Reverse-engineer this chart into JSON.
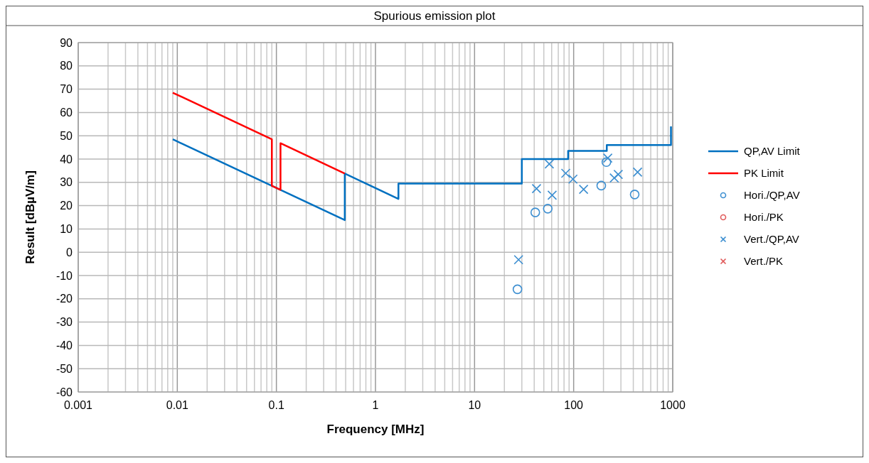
{
  "chart_data": {
    "type": "scatter",
    "title": "Spurious emission plot",
    "xlabel": "Frequency [MHz]",
    "ylabel": "Result [dBµV/m]",
    "log": "x",
    "grid": true,
    "legend": "right",
    "xlim": [
      0.001,
      1000
    ],
    "xticks": [
      0.001,
      0.01,
      0.1,
      1,
      10,
      100,
      1000
    ],
    "ylim": [
      -60,
      90
    ],
    "yticks": [
      -60,
      -50,
      -40,
      -30,
      -20,
      -10,
      0,
      10,
      20,
      30,
      40,
      50,
      60,
      70,
      80,
      90
    ],
    "series": [
      {
        "name": "QP,AV Limit",
        "type": "line",
        "color": "#0070c0",
        "marker": "none",
        "x": [
          0.009,
          0.49,
          0.49,
          1.705,
          1.705,
          30,
          30,
          88,
          88,
          216,
          216,
          960,
          960
        ],
        "values": [
          48.5,
          13.8,
          33.8,
          22.9,
          29.5,
          29.5,
          40,
          40,
          43.5,
          43.5,
          46,
          46,
          54
        ]
      },
      {
        "name": "PK Limit",
        "type": "line",
        "color": "#ff0000",
        "marker": "none",
        "x": [
          0.009,
          0.09,
          0.09,
          0.11,
          0.11,
          0.49
        ],
        "values": [
          68.5,
          48.5,
          28.5,
          26.8,
          46.8,
          33.8
        ]
      },
      {
        "name": "Hori./QP,AV",
        "color": "#3d8fd1",
        "marker": "circle",
        "x": [
          41,
          54.8,
          27.1,
          190,
          214,
          413
        ],
        "values": [
          17.1,
          18.7,
          -15.9,
          28.6,
          38.7,
          24.8
        ]
      },
      {
        "name": "Hori./PK",
        "color": "#e05a5a",
        "marker": "circle"
      },
      {
        "name": "Vert./QP,AV",
        "color": "#3d8fd1",
        "marker": "cross",
        "x": [
          27.8,
          42.2,
          56.8,
          60.7,
          83.2,
          98.4,
          126,
          221,
          257,
          282,
          442
        ],
        "values": [
          -3.2,
          27.3,
          37.9,
          24.5,
          33.9,
          31.4,
          27,
          40.4,
          31.9,
          33.4,
          34.4
        ]
      },
      {
        "name": "Vert./PK",
        "color": "#e05a5a",
        "marker": "cross"
      }
    ]
  }
}
